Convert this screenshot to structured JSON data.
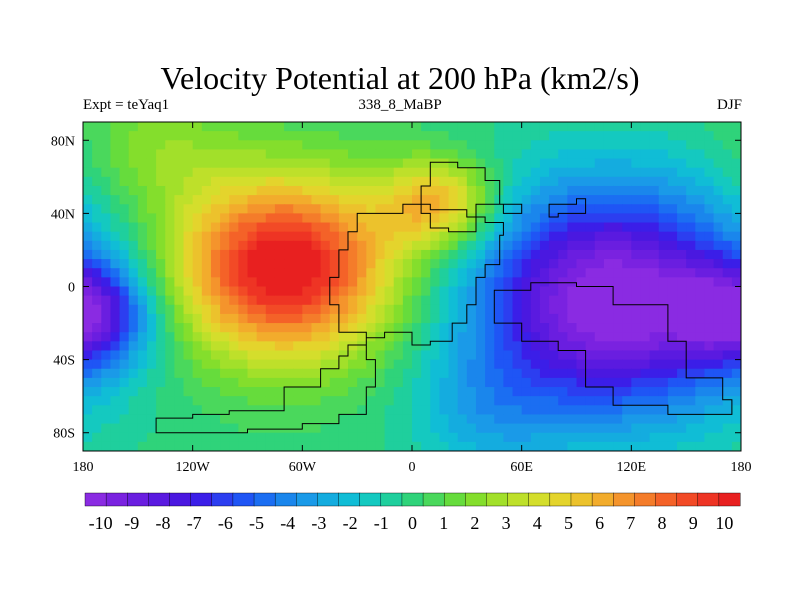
{
  "title": "Velocity Potential at 200 hPa (km2/s)",
  "subtitle_left": "Expt = teYaq1",
  "subtitle_center": "338_8_MaBP",
  "subtitle_right": "DJF",
  "chart_data": {
    "type": "heatmap",
    "variable": "Velocity Potential at 200 hPa",
    "units": "km2/s",
    "xlim": [
      -180,
      180
    ],
    "ylim": [
      -90,
      90
    ],
    "x_ticks": [
      {
        "value": -180,
        "label": "180"
      },
      {
        "value": -120,
        "label": "120W"
      },
      {
        "value": -60,
        "label": "60W"
      },
      {
        "value": 0,
        "label": "0"
      },
      {
        "value": 60,
        "label": "60E"
      },
      {
        "value": 120,
        "label": "120E"
      },
      {
        "value": 180,
        "label": "180"
      }
    ],
    "y_ticks": [
      {
        "value": 80,
        "label": "80N"
      },
      {
        "value": 40,
        "label": "40N"
      },
      {
        "value": 0,
        "label": "0"
      },
      {
        "value": -40,
        "label": "40S"
      },
      {
        "value": -80,
        "label": "80S"
      }
    ],
    "colorbar": {
      "min": -10.5,
      "max": 10.5,
      "labels": [
        "-10",
        "-9",
        "-8",
        "-7",
        "-6",
        "-5",
        "-4",
        "-3",
        "-2",
        "-1",
        "0",
        "1",
        "2",
        "3",
        "4",
        "5",
        "6",
        "7",
        "8",
        "9",
        "10"
      ],
      "colors": [
        "#8a2be2",
        "#7a22e0",
        "#6a1ee0",
        "#5a1ae0",
        "#4a18e0",
        "#3b1ee8",
        "#2c3ef0",
        "#1f55f5",
        "#1b6ef2",
        "#1a86ec",
        "#1a9ae8",
        "#14acdf",
        "#10bdd6",
        "#14c9c0",
        "#1fcf9d",
        "#2fd37a",
        "#4ad85c",
        "#66dc3c",
        "#84de2c",
        "#a2e02a",
        "#bee02a",
        "#d4de2c",
        "#e4d42c",
        "#ecc22c",
        "#f2ac2c",
        "#f4942c",
        "#f47c2a",
        "#f46228",
        "#f24a26",
        "#ee3424",
        "#e82020"
      ]
    },
    "field_centers": [
      {
        "lon": -70,
        "lat": 10,
        "value": 11,
        "radius": 44
      },
      {
        "lon": 110,
        "lat": -8,
        "value": -11,
        "radius": 55
      },
      {
        "lon": -178,
        "lat": -15,
        "value": -7,
        "radius": 24
      },
      {
        "lon": 15,
        "lat": 45,
        "value": 6,
        "radius": 22
      },
      {
        "lon": -140,
        "lat": 75,
        "value": 2,
        "radius": 30
      },
      {
        "lon": 40,
        "lat": -70,
        "value": -2,
        "radius": 30
      }
    ],
    "continent_outlines": [
      {
        "name": "african-continent",
        "points": [
          [
            -30,
            40
          ],
          [
            -5,
            45
          ],
          [
            10,
            42
          ],
          [
            30,
            38
          ],
          [
            40,
            35
          ],
          [
            50,
            28
          ],
          [
            48,
            12
          ],
          [
            40,
            5
          ],
          [
            35,
            -10
          ],
          [
            30,
            -20
          ],
          [
            22,
            -30
          ],
          [
            10,
            -32
          ],
          [
            0,
            -25
          ],
          [
            -15,
            -28
          ],
          [
            -25,
            -32
          ],
          [
            -35,
            -38
          ],
          [
            -40,
            -45
          ],
          [
            -50,
            -55
          ],
          [
            -70,
            -68
          ],
          [
            -100,
            -70
          ],
          [
            -120,
            -72
          ],
          [
            -140,
            -75
          ],
          [
            -140,
            -80
          ],
          [
            -115,
            -80
          ],
          [
            -90,
            -78
          ],
          [
            -60,
            -75
          ],
          [
            -40,
            -70
          ],
          [
            -25,
            -55
          ],
          [
            -20,
            -40
          ],
          [
            -25,
            -25
          ],
          [
            -40,
            -10
          ],
          [
            -45,
            5
          ],
          [
            -40,
            20
          ],
          [
            -35,
            30
          ],
          [
            -30,
            40
          ]
        ]
      },
      {
        "name": "northern-continent",
        "points": [
          [
            5,
            55
          ],
          [
            10,
            68
          ],
          [
            25,
            65
          ],
          [
            40,
            58
          ],
          [
            48,
            45
          ],
          [
            50,
            40
          ],
          [
            60,
            45
          ],
          [
            35,
            30
          ],
          [
            20,
            32
          ],
          [
            10,
            40
          ],
          [
            5,
            55
          ]
        ]
      },
      {
        "name": "eastern-continent",
        "points": [
          [
            45,
            -2
          ],
          [
            65,
            2
          ],
          [
            90,
            0
          ],
          [
            110,
            -10
          ],
          [
            140,
            -30
          ],
          [
            150,
            -50
          ],
          [
            170,
            -62
          ],
          [
            175,
            -70
          ],
          [
            140,
            -65
          ],
          [
            110,
            -55
          ],
          [
            95,
            -35
          ],
          [
            80,
            -30
          ],
          [
            60,
            -20
          ],
          [
            45,
            -2
          ]
        ]
      },
      {
        "name": "small-island",
        "points": [
          [
            75,
            45
          ],
          [
            90,
            48
          ],
          [
            95,
            40
          ],
          [
            80,
            38
          ],
          [
            75,
            45
          ]
        ]
      }
    ]
  }
}
